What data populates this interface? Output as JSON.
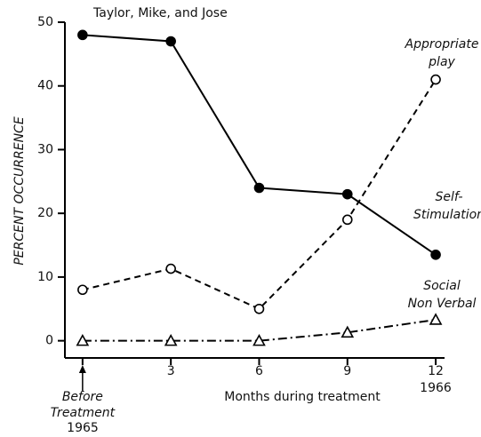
{
  "chart_data": {
    "type": "line",
    "title": "Taylor, Mike, and Jose",
    "x_label": "Months during treatment",
    "y_label": "PERCENT OCCURRENCE",
    "x": [
      0,
      3,
      6,
      9,
      12
    ],
    "xlim": [
      -0.6,
      12.3
    ],
    "ylim": [
      -2.7,
      50
    ],
    "xticks": [
      {
        "value": 0,
        "label": "Before Treatment"
      },
      3,
      6,
      9,
      12
    ],
    "yticks": [
      0,
      10,
      20,
      30,
      40,
      50
    ],
    "annotations": [
      "1965",
      "1966"
    ],
    "series": [
      {
        "name": "Self-Stimulation",
        "color": "#000000",
        "marker": "filled_circle",
        "dash": "solid",
        "values": [
          48,
          47,
          24,
          23,
          13.5
        ]
      },
      {
        "name": "Appropriate play",
        "color": "#000000",
        "marker": "open_circle",
        "dash": "dashed",
        "values": [
          8,
          11.3,
          5,
          19,
          41
        ]
      },
      {
        "name": "Social Non Verbal",
        "color": "#000000",
        "marker": "open_triangle",
        "dash": "dashdot",
        "values": [
          0,
          0,
          0,
          1.3,
          3.3
        ]
      }
    ]
  }
}
